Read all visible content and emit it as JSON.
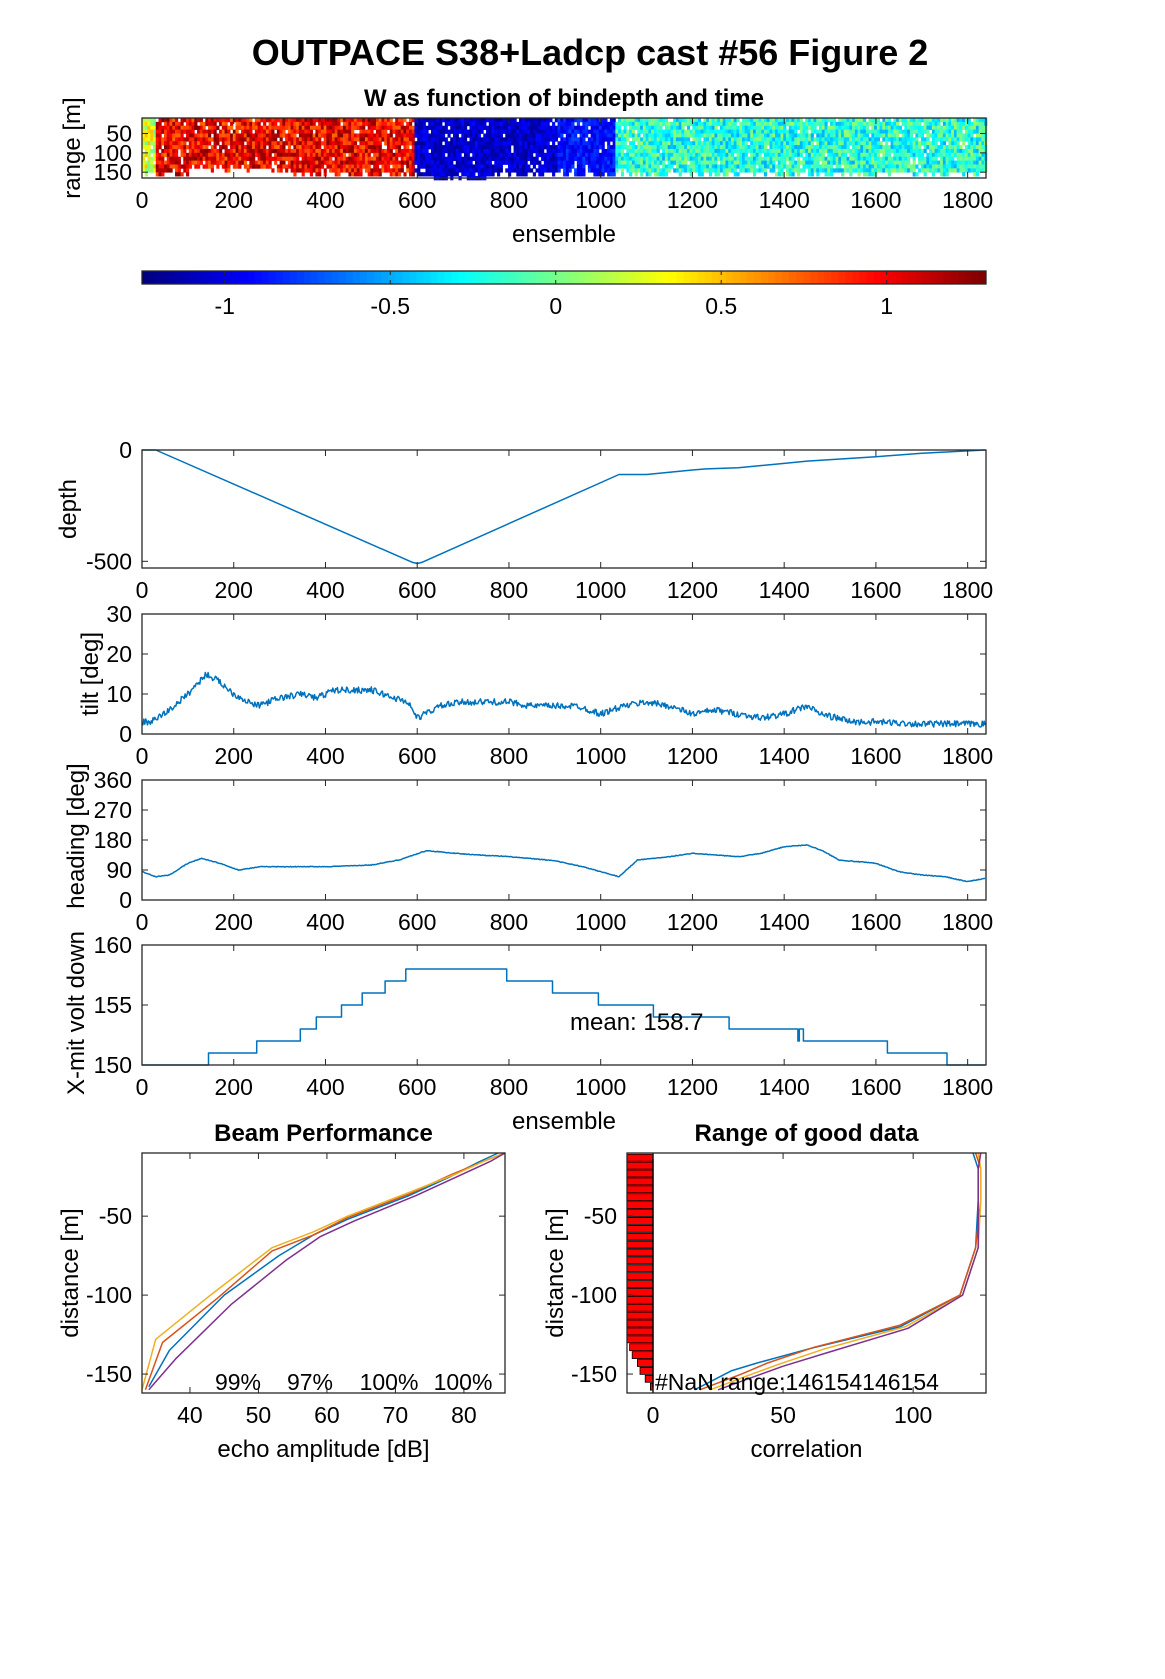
{
  "figure": {
    "title": "OUTPACE S38+Ladcp cast #56 Figure 2"
  },
  "colors": {
    "line_blue": "#0072BD",
    "bar_red": "#FF0000",
    "series": [
      "#0072BD",
      "#D95319",
      "#EDB120",
      "#7E2F8E"
    ]
  },
  "chart_data": [
    {
      "id": "w_image",
      "type": "heatmap",
      "title": "W as function of bindepth and time",
      "xlabel": "ensemble",
      "ylabel": "range [m]",
      "xlim": [
        0,
        1840
      ],
      "ylim": [
        165,
        10
      ],
      "xticks": [
        0,
        200,
        400,
        600,
        800,
        1000,
        1200,
        1400,
        1600,
        1800
      ],
      "yticks": [
        50,
        100,
        150
      ],
      "colormap": "jet",
      "colorbar": {
        "clim": [
          -1.25,
          1.3
        ],
        "ticks": [
          -1,
          -0.5,
          0,
          0.5,
          1
        ],
        "tick_labels": [
          "-1",
          "-0.5",
          "0",
          "0.5",
          "1"
        ]
      },
      "segments": [
        {
          "x": [
            0,
            25
          ],
          "w": 0.25
        },
        {
          "x": [
            25,
            590
          ],
          "w": 1.0
        },
        {
          "x": [
            590,
            1030
          ],
          "w": -1.05
        },
        {
          "x": [
            1030,
            1840
          ],
          "w": -0.2
        }
      ],
      "valid_depth": [
        {
          "x": [
            0,
            100
          ],
          "depth": 150
        },
        {
          "x": [
            100,
            330
          ],
          "depth": 135
        },
        {
          "x": [
            330,
            600
          ],
          "depth": 150
        },
        {
          "x": [
            600,
            760
          ],
          "depth": 160
        },
        {
          "x": [
            760,
            1840
          ],
          "depth": 150
        }
      ]
    },
    {
      "id": "depth",
      "type": "line",
      "xlabel": "",
      "ylabel": "depth",
      "xlim": [
        0,
        1840
      ],
      "ylim": [
        -530,
        0
      ],
      "xticks": [
        0,
        200,
        400,
        600,
        800,
        1000,
        1200,
        1400,
        1600,
        1800
      ],
      "yticks": [
        -500,
        0
      ],
      "x": [
        0,
        30,
        590,
        600,
        610,
        1040,
        1100,
        1200,
        1230,
        1300,
        1400,
        1450,
        1600,
        1700,
        1838
      ],
      "y": [
        0,
        0,
        -505,
        -510,
        -505,
        -110,
        -110,
        -90,
        -85,
        -80,
        -60,
        -50,
        -30,
        -15,
        0
      ]
    },
    {
      "id": "tilt",
      "type": "line",
      "xlabel": "",
      "ylabel": "tilt [deg]",
      "xlim": [
        0,
        1840
      ],
      "ylim": [
        0,
        30
      ],
      "xticks": [
        0,
        200,
        400,
        600,
        800,
        1000,
        1200,
        1400,
        1600,
        1800
      ],
      "yticks": [
        0,
        10,
        20,
        30
      ],
      "noise": 1.6,
      "x": [
        0,
        20,
        60,
        100,
        140,
        170,
        200,
        250,
        300,
        350,
        380,
        420,
        460,
        500,
        550,
        580,
        600,
        650,
        700,
        750,
        800,
        850,
        900,
        950,
        1000,
        1050,
        1100,
        1150,
        1200,
        1250,
        1300,
        1350,
        1400,
        1450,
        1480,
        1550,
        1600,
        1700,
        1838
      ],
      "y": [
        3,
        3,
        6,
        10,
        15,
        13,
        10,
        7,
        9,
        10,
        9,
        11,
        11,
        11,
        9,
        8,
        4,
        7,
        8,
        8,
        8,
        7,
        7,
        7,
        5,
        7,
        8,
        7,
        5,
        6,
        5,
        4,
        5,
        7,
        5,
        3,
        3,
        2.5,
        2.5
      ]
    },
    {
      "id": "heading",
      "type": "line",
      "xlabel": "",
      "ylabel": "heading [deg]",
      "xlim": [
        0,
        1840
      ],
      "ylim": [
        0,
        360
      ],
      "xticks": [
        0,
        200,
        400,
        600,
        800,
        1000,
        1200,
        1400,
        1600,
        1800
      ],
      "yticks": [
        0,
        90,
        180,
        270,
        360
      ],
      "noise": 2,
      "x": [
        0,
        30,
        60,
        100,
        130,
        170,
        210,
        260,
        300,
        400,
        500,
        560,
        620,
        700,
        800,
        900,
        960,
        1000,
        1040,
        1080,
        1150,
        1200,
        1300,
        1350,
        1400,
        1450,
        1480,
        1520,
        1560,
        1600,
        1650,
        1700,
        1750,
        1800,
        1838
      ],
      "y": [
        85,
        70,
        75,
        110,
        125,
        110,
        90,
        100,
        100,
        100,
        105,
        120,
        148,
        138,
        130,
        118,
        100,
        85,
        70,
        120,
        130,
        140,
        130,
        140,
        160,
        165,
        150,
        120,
        115,
        110,
        85,
        75,
        70,
        55,
        65
      ]
    },
    {
      "id": "xmit",
      "type": "line",
      "xlabel": "ensemble",
      "ylabel": "X-mit volt down",
      "annotation": "mean: 158.7",
      "xlim": [
        0,
        1840
      ],
      "ylim": [
        150,
        160
      ],
      "xticks": [
        0,
        200,
        400,
        600,
        800,
        1000,
        1200,
        1400,
        1600,
        1800
      ],
      "yticks": [
        150,
        155,
        160
      ],
      "steps": [
        [
          0,
          150
        ],
        [
          145,
          151
        ],
        [
          250,
          152
        ],
        [
          345,
          153
        ],
        [
          380,
          154
        ],
        [
          435,
          155
        ],
        [
          480,
          156
        ],
        [
          530,
          157
        ],
        [
          575,
          158
        ],
        [
          795,
          157
        ],
        [
          895,
          156
        ],
        [
          995,
          155
        ],
        [
          1115,
          154
        ],
        [
          1280,
          153
        ],
        [
          1430,
          152
        ],
        [
          1433,
          153
        ],
        [
          1442,
          152
        ],
        [
          1625,
          151
        ],
        [
          1755,
          150
        ],
        [
          1838,
          150
        ]
      ]
    },
    {
      "id": "beam",
      "type": "line",
      "title": "Beam Performance",
      "xlabel": "echo amplitude [dB]",
      "ylabel": "distance [m]",
      "xlim": [
        33,
        86
      ],
      "ylim": [
        -162,
        -10
      ],
      "xticks": [
        40,
        50,
        60,
        70,
        80
      ],
      "yticks": [
        -150,
        -100,
        -50
      ],
      "percent_labels": [
        "99%",
        "97%",
        "100%",
        "100%"
      ],
      "series": [
        {
          "x": [
            34,
            37,
            45,
            53,
            58,
            63,
            72,
            78,
            82,
            85
          ],
          "y": [
            -158,
            -135,
            -100,
            -75,
            -62,
            -52,
            -37,
            -25,
            -16,
            -10
          ]
        },
        {
          "x": [
            33.5,
            36,
            44,
            52,
            58,
            63,
            72,
            78,
            83,
            86
          ],
          "y": [
            -160,
            -130,
            -102,
            -72,
            -62,
            -51,
            -36,
            -24,
            -15,
            -10
          ]
        },
        {
          "x": [
            33,
            35,
            43,
            52,
            58,
            63,
            72,
            79,
            83,
            86
          ],
          "y": [
            -160,
            -128,
            -100,
            -70,
            -60,
            -50,
            -35,
            -23,
            -15,
            -10
          ]
        },
        {
          "x": [
            34,
            38,
            46,
            54,
            59,
            64,
            73,
            79,
            84,
            86
          ],
          "y": [
            -160,
            -140,
            -106,
            -78,
            -63,
            -53,
            -37,
            -25,
            -15,
            -10
          ]
        }
      ]
    },
    {
      "id": "range",
      "type": "line",
      "title": "Range of good data",
      "xlabel": "correlation",
      "ylabel": "distance [m]",
      "annotation": "#NaN range:146154146154",
      "xlim": [
        -10,
        128
      ],
      "ylim": [
        -162,
        -10
      ],
      "xticks": [
        0,
        50,
        100
      ],
      "yticks": [
        -150,
        -100,
        -50
      ],
      "bars": {
        "y": [
          -13,
          -18,
          -23,
          -28,
          -33,
          -38,
          -43,
          -48,
          -53,
          -58,
          -63,
          -68,
          -73,
          -78,
          -83,
          -88,
          -93,
          -98,
          -103,
          -108,
          -113,
          -118,
          -123,
          -128,
          -133,
          -138,
          -143,
          -148,
          -153,
          -158
        ],
        "width": [
          -10,
          -10,
          -10,
          -10,
          -10,
          -10,
          -10,
          -10,
          -10,
          -10,
          -10,
          -10,
          -10,
          -10,
          -10,
          -10,
          -10,
          -10,
          -10,
          -10,
          -10,
          -10,
          -10,
          -10,
          -9,
          -8,
          -6,
          -5,
          -3,
          -1
        ]
      },
      "series": [
        {
          "x": [
            16,
            30,
            40,
            60,
            95,
            118,
            124,
            125,
            125,
            123
          ],
          "y": [
            -160,
            -148,
            -143,
            -134,
            -120,
            -100,
            -70,
            -40,
            -20,
            -10
          ]
        },
        {
          "x": [
            18,
            34,
            44,
            62,
            95,
            118,
            124,
            126,
            126,
            124
          ],
          "y": [
            -160,
            -150,
            -143,
            -133,
            -119,
            -100,
            -70,
            -40,
            -20,
            -10
          ]
        },
        {
          "x": [
            22,
            38,
            48,
            66,
            97,
            119,
            125,
            126,
            126,
            125
          ],
          "y": [
            -160,
            -150,
            -144,
            -134,
            -120,
            -100,
            -70,
            -40,
            -20,
            -10
          ]
        },
        {
          "x": [
            25,
            40,
            50,
            68,
            98,
            119,
            125,
            125,
            125,
            126
          ],
          "y": [
            -160,
            -151,
            -145,
            -136,
            -121,
            -100,
            -70,
            -40,
            -20,
            -10
          ]
        }
      ]
    }
  ]
}
